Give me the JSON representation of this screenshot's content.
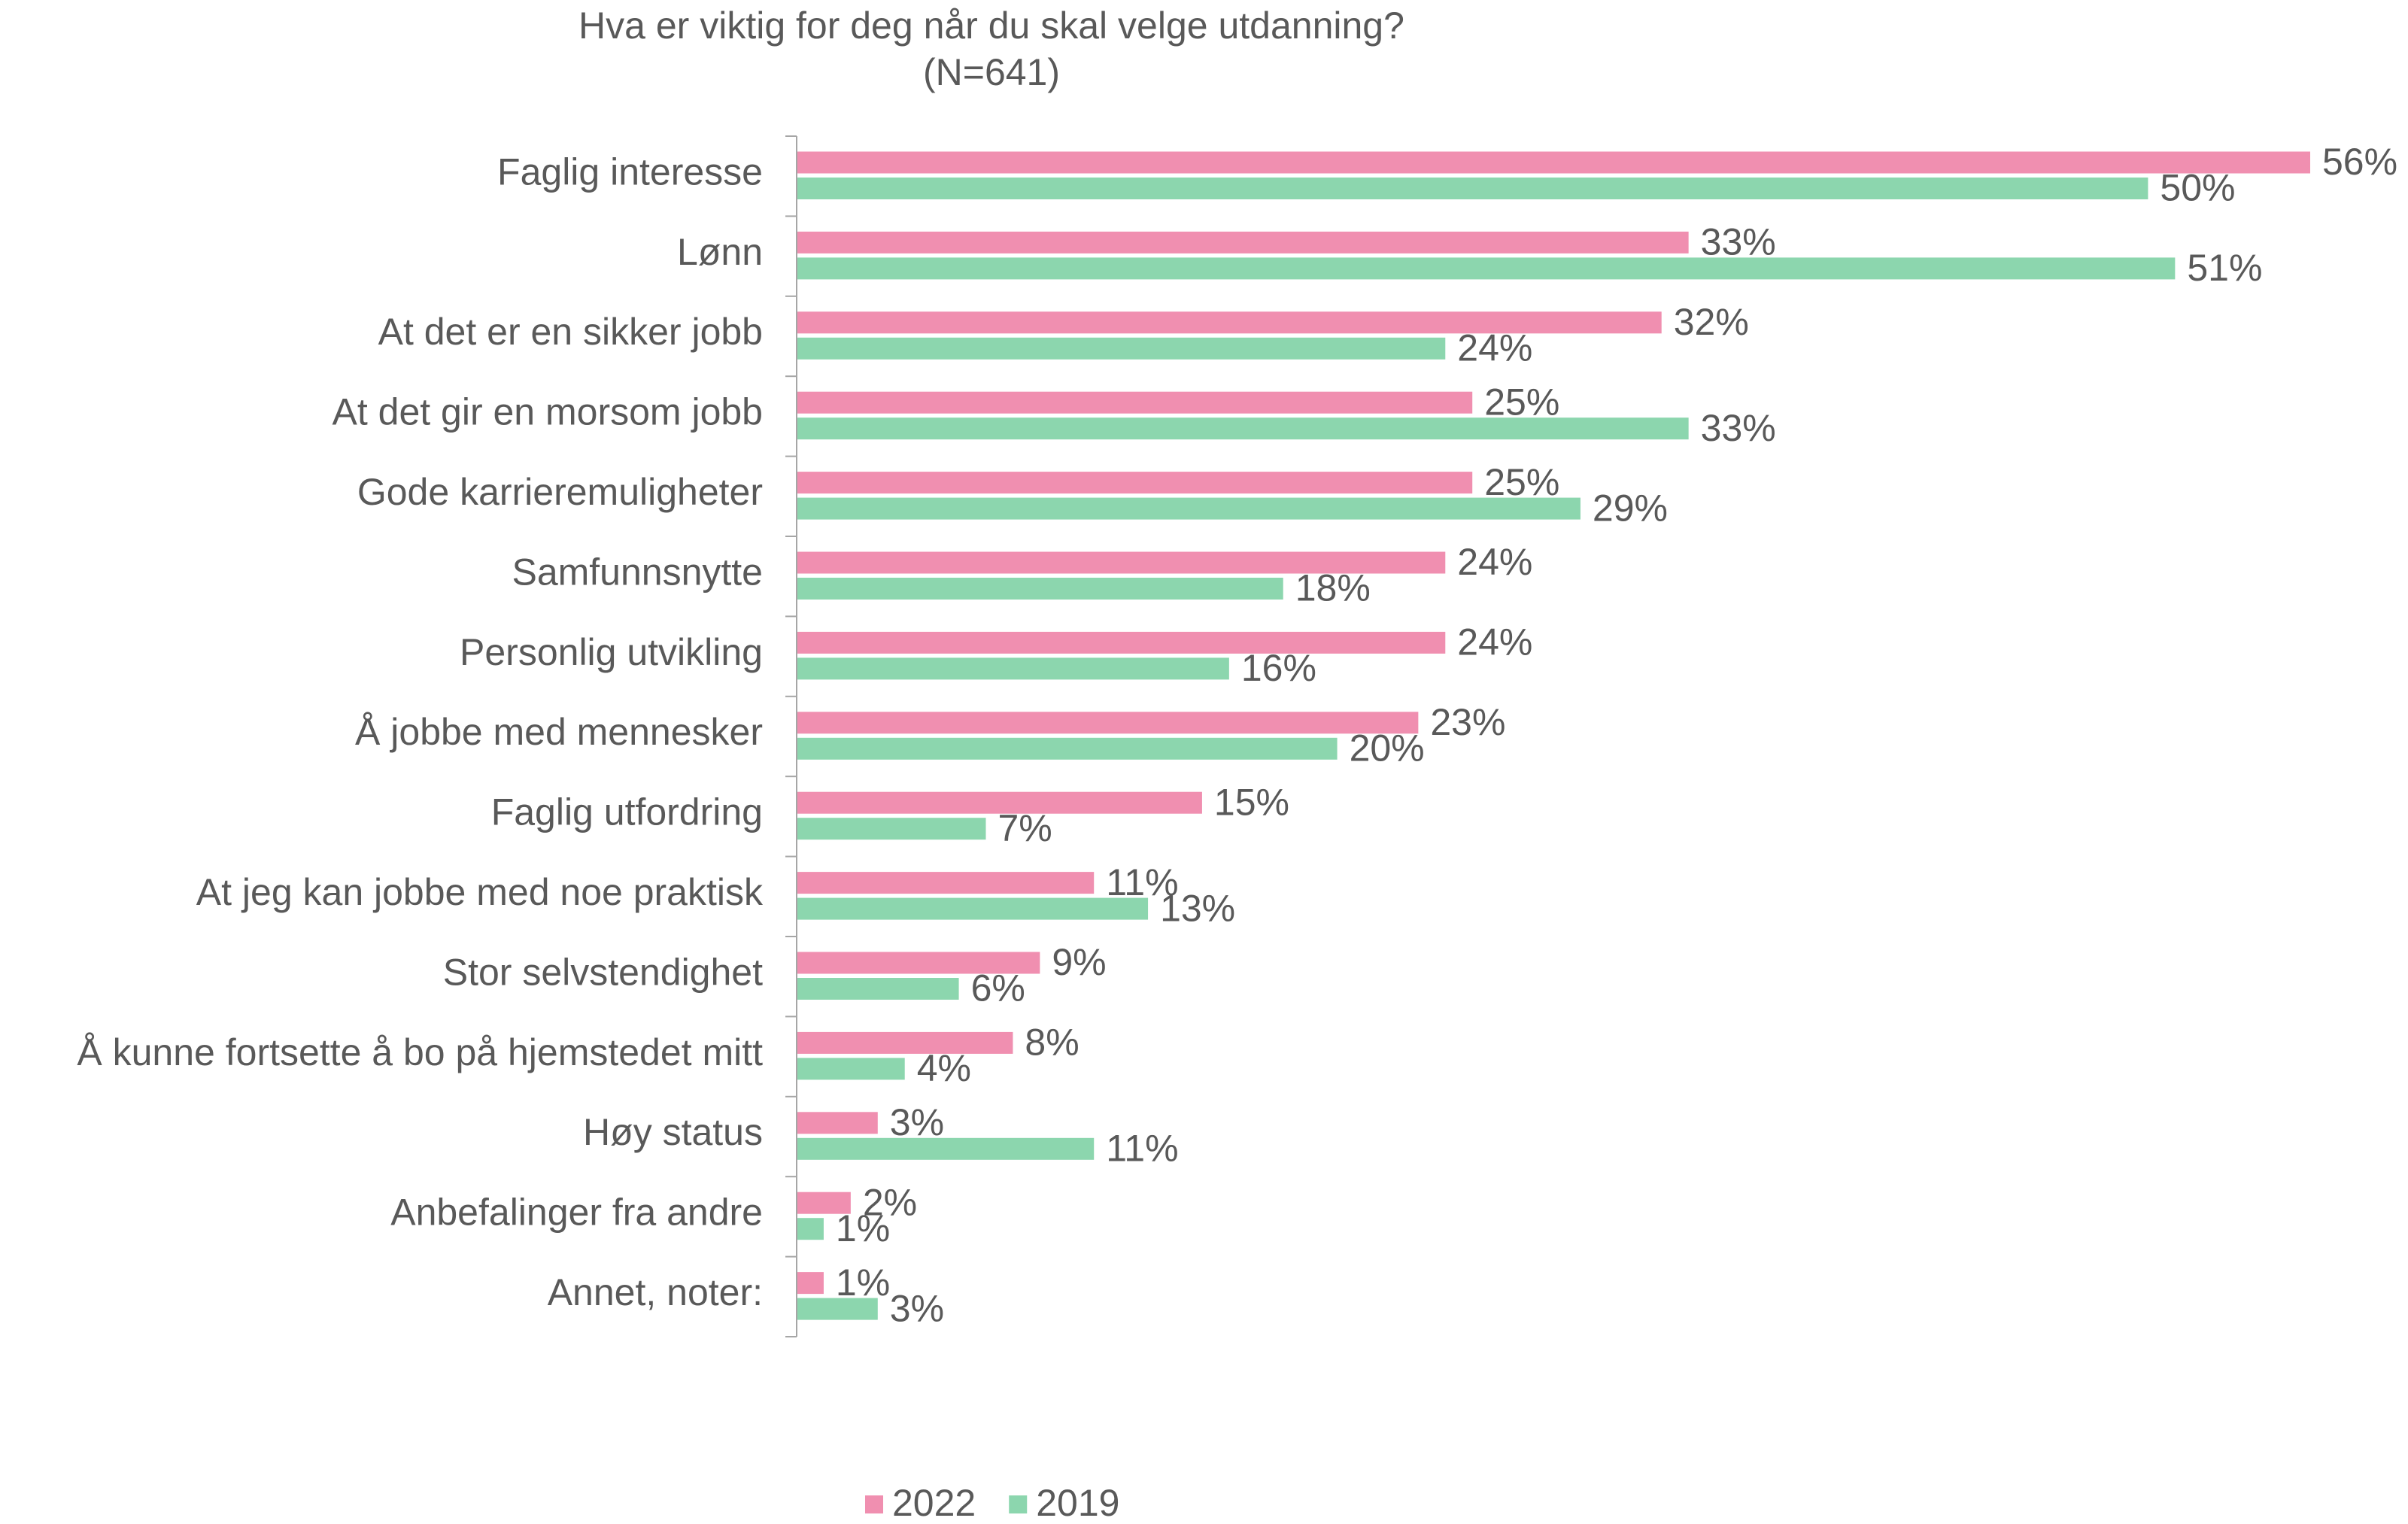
{
  "chart_data": {
    "type": "bar",
    "orientation": "horizontal",
    "title": "Hva er viktig for deg når du skal velge utdanning?",
    "subtitle": "(N=641)",
    "categories": [
      "Faglig interesse",
      "Lønn",
      "At det er en sikker jobb",
      "At det gir en morsom jobb",
      "Gode karrieremuligheter",
      "Samfunnsnytte",
      "Personlig utvikling",
      "Å jobbe med mennesker",
      "Faglig utfordring",
      "At jeg kan jobbe med noe praktisk",
      "Stor selvstendighet",
      "Å kunne fortsette å bo på hjemstedet mitt",
      "Høy status",
      "Anbefalinger fra andre",
      "Annet, noter:"
    ],
    "series": [
      {
        "name": "2022",
        "color": "#f08fb0",
        "values": [
          56,
          33,
          32,
          25,
          25,
          24,
          24,
          23,
          15,
          11,
          9,
          8,
          3,
          2,
          1
        ],
        "value_labels": [
          "56%",
          "33%",
          "32%",
          "25%",
          "25%",
          "24%",
          "24%",
          "23%",
          "15%",
          "11%",
          "9%",
          "8%",
          "3%",
          "2%",
          "1%"
        ]
      },
      {
        "name": "2019",
        "color": "#8cd6ae",
        "values": [
          50,
          51,
          24,
          33,
          29,
          18,
          16,
          20,
          7,
          13,
          6,
          4,
          11,
          1,
          3
        ],
        "value_labels": [
          "50%",
          "51%",
          "24%",
          "33%",
          "29%",
          "18%",
          "16%",
          "20%",
          "7%",
          "13%",
          "6%",
          "4%",
          "11%",
          "1%",
          "3%"
        ]
      }
    ],
    "xlim": [
      0,
      56
    ],
    "legend": "bottom"
  }
}
